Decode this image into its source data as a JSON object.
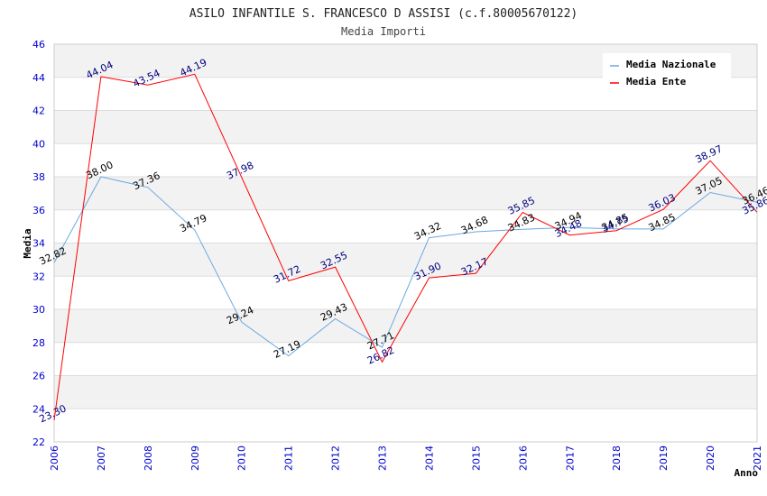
{
  "chart_data": {
    "type": "line",
    "title": "ASILO INFANTILE S. FRANCESCO D ASSISI (c.f.80005670122)",
    "subtitle": "Media Importi",
    "xlabel": "Anno",
    "ylabel": "Media",
    "ylim": [
      22,
      46
    ],
    "yticks": [
      22,
      24,
      26,
      28,
      30,
      32,
      34,
      36,
      38,
      40,
      42,
      44,
      46
    ],
    "x": [
      2006,
      2007,
      2008,
      2009,
      2010,
      2011,
      2012,
      2013,
      2014,
      2015,
      2016,
      2017,
      2018,
      2019,
      2020,
      2021
    ],
    "grid": true,
    "legend_position": "top-right",
    "series": [
      {
        "name": "Media Nazionale",
        "color": "#6aa8e0",
        "label_color": "#000000",
        "values": [
          32.82,
          38.0,
          37.36,
          34.79,
          29.24,
          27.19,
          29.43,
          27.71,
          34.32,
          34.68,
          34.83,
          34.94,
          34.85,
          34.85,
          37.05,
          36.46
        ],
        "labels": [
          "32.82",
          "38.00",
          "37.36",
          "34.79",
          "29.24",
          "27.19",
          "29.43",
          "27.71",
          "34.32",
          "34.68",
          "34.83",
          "34.94",
          "34.85",
          "34.85",
          "37.05",
          "36.46"
        ]
      },
      {
        "name": "Media Ente",
        "color": "#ff0000",
        "label_color": "#000080",
        "values": [
          23.3,
          44.04,
          43.54,
          44.19,
          37.98,
          31.72,
          32.55,
          26.82,
          31.9,
          32.17,
          35.85,
          34.48,
          34.75,
          36.03,
          38.97,
          35.86
        ],
        "labels": [
          "23.30",
          "44.04",
          "43.54",
          "44.19",
          "37.98",
          "31.72",
          "32.55",
          "26.82",
          "31.90",
          "32.17",
          "35.85",
          "34.48",
          "34.75",
          "36.03",
          "38.97",
          "35.86"
        ]
      }
    ]
  }
}
